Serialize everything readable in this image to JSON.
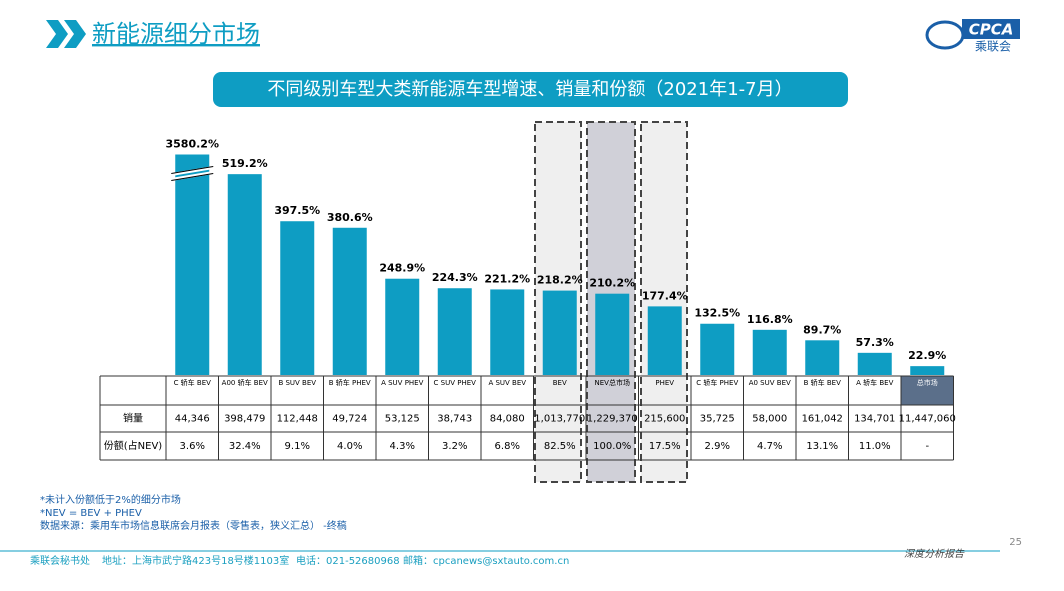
{
  "header": {
    "title": "新能源细分市场",
    "logo": "CPCA",
    "logo_sub": "乘联会"
  },
  "chart_data": {
    "type": "bar",
    "title": "不同级别车型大类新能源车型增速、销量和份额（2021年1-7月）",
    "categories": [
      "C 轿车 BEV",
      "A00 轿车 BEV",
      "B SUV BEV",
      "B 轿车 PHEV",
      "A SUV PHEV",
      "C SUV PHEV",
      "A SUV BEV",
      "BEV",
      "NEV总市场",
      "PHEV",
      "C 轿车 PHEV",
      "A0 SUV BEV",
      "B 轿车 BEV",
      "A 轿车 BEV",
      "总市场"
    ],
    "values": [
      3580.2,
      519.2,
      397.5,
      380.6,
      248.9,
      224.3,
      221.2,
      218.2,
      210.2,
      177.4,
      132.5,
      116.8,
      89.7,
      57.3,
      22.9
    ],
    "value_labels": [
      "3580.2%",
      "519.2%",
      "397.5%",
      "380.6%",
      "248.9%",
      "224.3%",
      "221.2%",
      "218.2%",
      "210.2%",
      "177.4%",
      "132.5%",
      "116.8%",
      "89.7%",
      "57.3%",
      "22.9%"
    ],
    "color": "#0e9dc3",
    "ylim": [
      0,
      570
    ],
    "axis_break": true
  },
  "table": {
    "row_labels": [
      "销量",
      "份额(占NEV)"
    ],
    "rows": [
      [
        "44,346",
        "398,479",
        "112,448",
        "49,724",
        "53,125",
        "38,743",
        "84,080",
        "1,013,770",
        "1,229,370",
        "215,600",
        "35,725",
        "58,000",
        "161,042",
        "134,701",
        "11,447,060"
      ],
      [
        "3.6%",
        "32.4%",
        "9.1%",
        "4.0%",
        "4.3%",
        "3.2%",
        "6.8%",
        "82.5%",
        "100.0%",
        "17.5%",
        "2.9%",
        "4.7%",
        "13.1%",
        "11.0%",
        "-"
      ]
    ]
  },
  "notes": [
    "*未计入份额低于2%的细分市场",
    "*NEV = BEV + PHEV",
    "数据来源：乘用车市场信息联席会月报表（零售表，狭义汇总） -终稿"
  ],
  "page_number": "25",
  "footer": {
    "org": "乘联会秘书处",
    "address": "地址：上海市武宁路423号18号楼1103室",
    "phone": "电话：021-52680968",
    "email": "邮箱：cpcanews@sxtauto.com.cn",
    "report": "深度分析报告"
  }
}
